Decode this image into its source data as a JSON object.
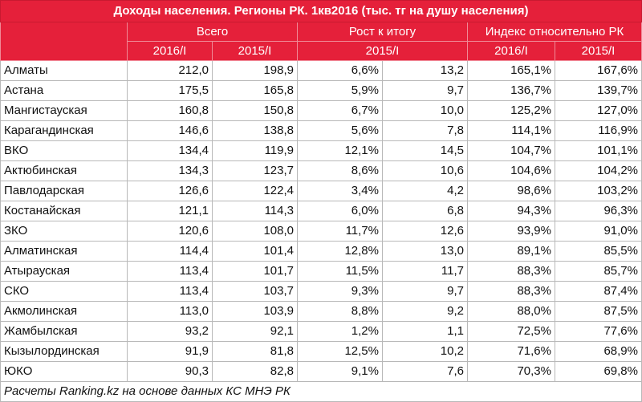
{
  "title": "Доходы населения. Регионы РК. 1кв2016 (тыс. тг на душу населения)",
  "groups": {
    "total": "Всего",
    "growth": "Рост к итогу",
    "index": "Индекс относительно РК"
  },
  "subheaders": {
    "total_2016": "2016/I",
    "total_2015": "2015/I",
    "growth_2015": "2015/I",
    "index_2016": "2016/I",
    "index_2015": "2015/I"
  },
  "rows": [
    {
      "region": "Алматы",
      "v2016": "212,0",
      "v2015": "198,9",
      "g1": "6,6%",
      "g2": "13,2",
      "i2016": "165,1%",
      "i2015": "167,6%"
    },
    {
      "region": "Астана",
      "v2016": "175,5",
      "v2015": "165,8",
      "g1": "5,9%",
      "g2": "9,7",
      "i2016": "136,7%",
      "i2015": "139,7%"
    },
    {
      "region": "Мангистауская",
      "v2016": "160,8",
      "v2015": "150,8",
      "g1": "6,7%",
      "g2": "10,0",
      "i2016": "125,2%",
      "i2015": "127,0%"
    },
    {
      "region": "Карагандинская",
      "v2016": "146,6",
      "v2015": "138,8",
      "g1": "5,6%",
      "g2": "7,8",
      "i2016": "114,1%",
      "i2015": "116,9%"
    },
    {
      "region": "ВКО",
      "v2016": "134,4",
      "v2015": "119,9",
      "g1": "12,1%",
      "g2": "14,5",
      "i2016": "104,7%",
      "i2015": "101,1%"
    },
    {
      "region": "Актюбинская",
      "v2016": "134,3",
      "v2015": "123,7",
      "g1": "8,6%",
      "g2": "10,6",
      "i2016": "104,6%",
      "i2015": "104,2%"
    },
    {
      "region": "Павлодарская",
      "v2016": "126,6",
      "v2015": "122,4",
      "g1": "3,4%",
      "g2": "4,2",
      "i2016": "98,6%",
      "i2015": "103,2%"
    },
    {
      "region": "Костанайская",
      "v2016": "121,1",
      "v2015": "114,3",
      "g1": "6,0%",
      "g2": "6,8",
      "i2016": "94,3%",
      "i2015": "96,3%"
    },
    {
      "region": "ЗКО",
      "v2016": "120,6",
      "v2015": "108,0",
      "g1": "11,7%",
      "g2": "12,6",
      "i2016": "93,9%",
      "i2015": "91,0%"
    },
    {
      "region": "Алматинская",
      "v2016": "114,4",
      "v2015": "101,4",
      "g1": "12,8%",
      "g2": "13,0",
      "i2016": "89,1%",
      "i2015": "85,5%"
    },
    {
      "region": "Атырауская",
      "v2016": "113,4",
      "v2015": "101,7",
      "g1": "11,5%",
      "g2": "11,7",
      "i2016": "88,3%",
      "i2015": "85,7%"
    },
    {
      "region": "СКО",
      "v2016": "113,4",
      "v2015": "103,7",
      "g1": "9,3%",
      "g2": "9,7",
      "i2016": "88,3%",
      "i2015": "87,4%"
    },
    {
      "region": "Акмолинская",
      "v2016": "113,0",
      "v2015": "103,9",
      "g1": "8,8%",
      "g2": "9,2",
      "i2016": "88,0%",
      "i2015": "87,5%"
    },
    {
      "region": "Жамбылская",
      "v2016": "93,2",
      "v2015": "92,1",
      "g1": "1,2%",
      "g2": "1,1",
      "i2016": "72,5%",
      "i2015": "77,6%"
    },
    {
      "region": "Кызылординская",
      "v2016": "91,9",
      "v2015": "81,8",
      "g1": "12,5%",
      "g2": "10,2",
      "i2016": "71,6%",
      "i2015": "68,9%"
    },
    {
      "region": "ЮКО",
      "v2016": "90,3",
      "v2015": "82,8",
      "g1": "9,1%",
      "g2": "7,6",
      "i2016": "70,3%",
      "i2015": "69,8%"
    }
  ],
  "footer": "Расчеты Ranking.kz на основе данных КС МНЭ РК",
  "colors": {
    "header_bg": "#e5203a",
    "header_text": "#ffffff",
    "grid": "#b8b8b8"
  }
}
